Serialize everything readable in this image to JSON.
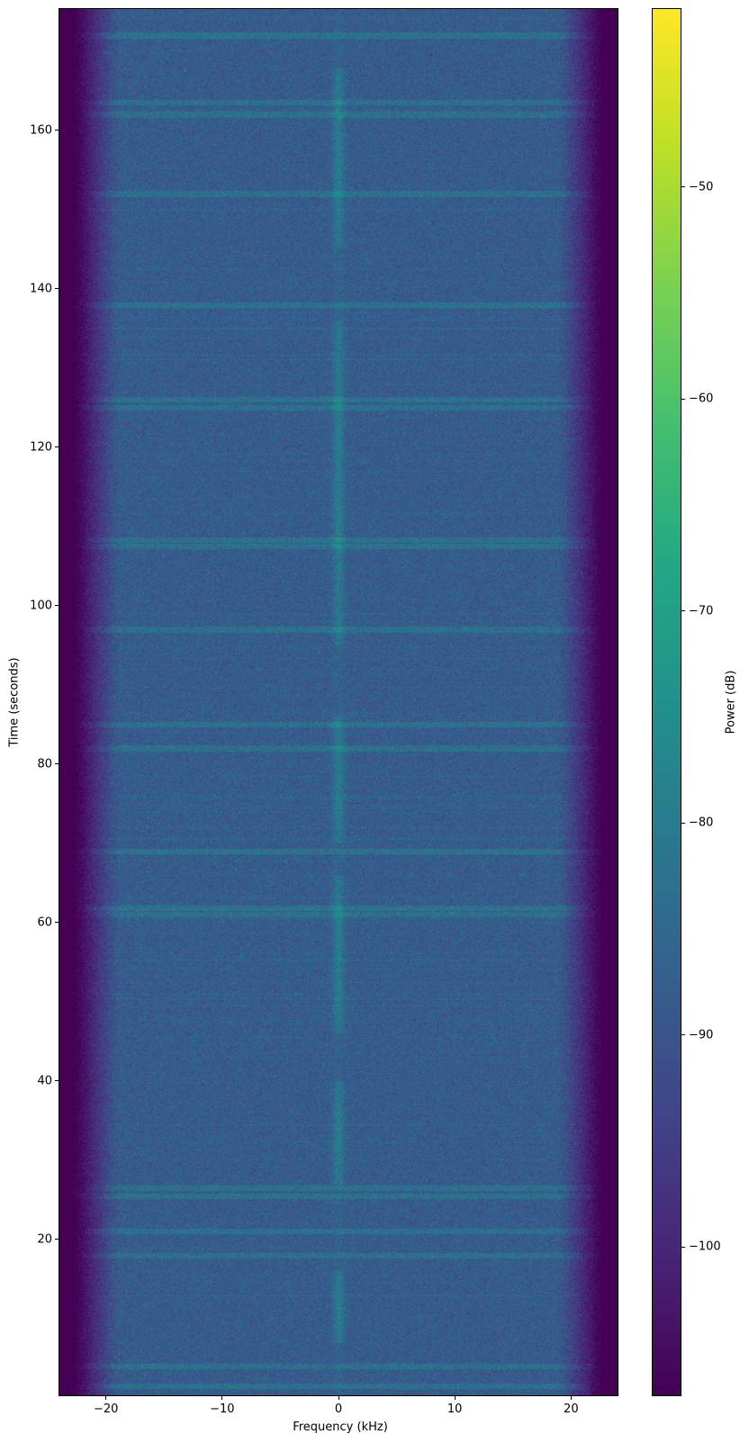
{
  "chart_data": {
    "type": "heatmap",
    "title": "",
    "xlabel": "Frequency (kHz)",
    "ylabel": "Time (seconds)",
    "xlim": [
      -24,
      24
    ],
    "ylim": [
      0.3,
      175.3
    ],
    "xticks": [
      -20,
      -10,
      0,
      10,
      20
    ],
    "yticks": [
      20,
      40,
      60,
      80,
      100,
      120,
      140,
      160
    ],
    "grid": false,
    "colormap": "viridis",
    "colorbar": {
      "label": "Power (dB)",
      "range": [
        -107,
        -41.6
      ],
      "ticks": [
        -100,
        -90,
        -80,
        -70,
        -60,
        -50
      ],
      "position": "right"
    },
    "typical_power_db": -88,
    "edge_rolloff_khz": [
      19,
      22.5
    ],
    "center_tone_khz": 0,
    "center_tone_segments_s": [
      [
        7,
        16
      ],
      [
        27,
        40
      ],
      [
        46,
        66
      ],
      [
        70,
        86
      ],
      [
        95,
        136
      ],
      [
        145,
        168
      ]
    ],
    "horizontal_bands_s": [
      1.5,
      4,
      18,
      21,
      25.5,
      26.5,
      61,
      61.8,
      69,
      82,
      85,
      97,
      107.5,
      108.3,
      125,
      126,
      138,
      152,
      162,
      163.5,
      172
    ]
  }
}
